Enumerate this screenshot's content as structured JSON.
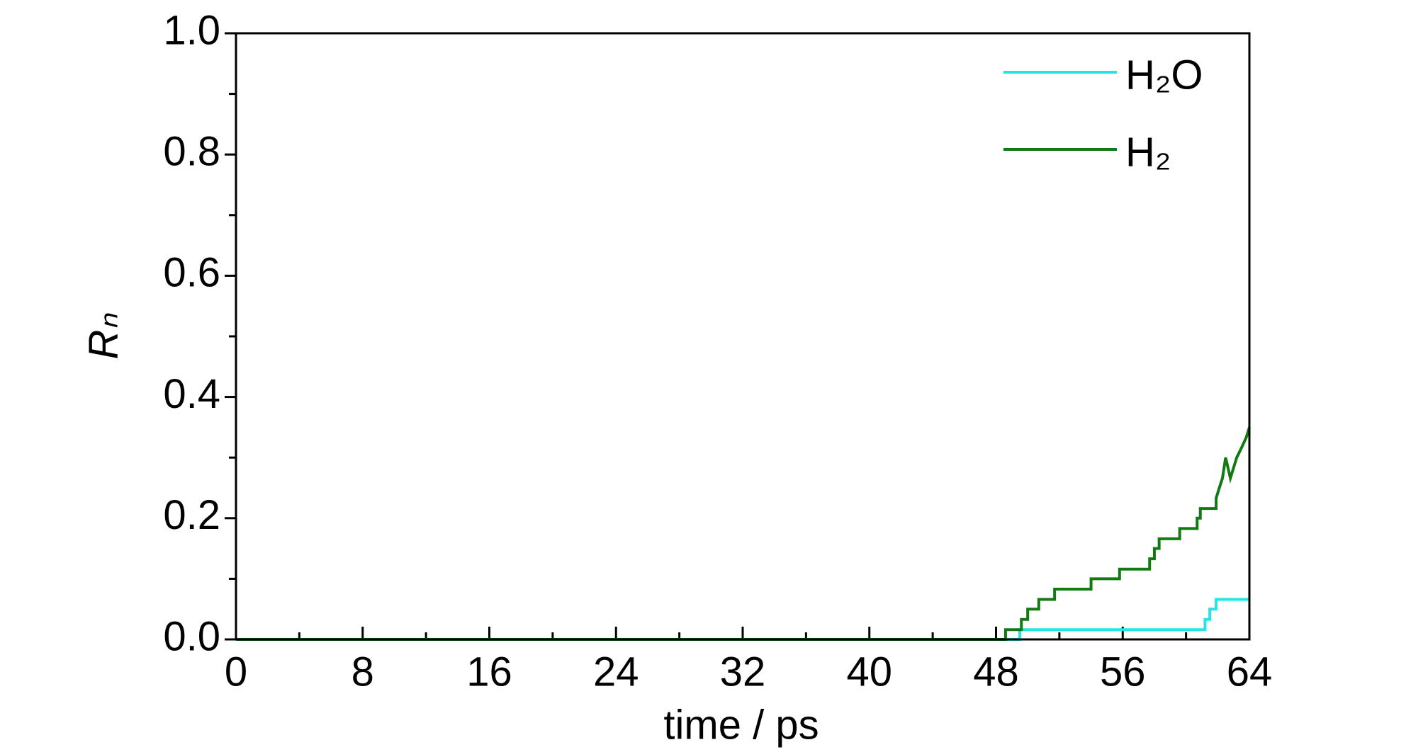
{
  "chart_data": {
    "type": "line",
    "xlabel": "time / ps",
    "ylabel": "Rₙ",
    "xlim": [
      0,
      64
    ],
    "xticks": [
      0,
      8,
      16,
      24,
      32,
      40,
      48,
      56,
      64
    ],
    "xticks_minor": [
      4,
      12,
      20,
      28,
      36,
      44,
      52,
      60
    ],
    "ylim": [
      0,
      1
    ],
    "yticks": [
      {
        "value": 0,
        "label": "0.0"
      },
      {
        "value": 0.2,
        "label": "0.2"
      },
      {
        "value": 0.4,
        "label": "0.4"
      },
      {
        "value": 0.6,
        "label": "0.6"
      },
      {
        "value": 0.8,
        "label": "0.8"
      },
      {
        "value": 1,
        "label": "1.0"
      }
    ],
    "yticks_minor": [
      0.1,
      0.3,
      0.5,
      0.7,
      0.9
    ],
    "legend": "upper right",
    "series": [
      {
        "name": "H₂O",
        "color": "#22e5e5",
        "x": [
          0,
          49.5,
          49.5,
          61.2,
          61.2,
          61.5,
          61.5,
          61.9,
          61.9,
          64
        ],
        "values": [
          0,
          0,
          0.016,
          0.016,
          0.033,
          0.033,
          0.05,
          0.05,
          0.066,
          0.066
        ]
      },
      {
        "name": "H₂",
        "color": "#137a13",
        "x": [
          0,
          48.6,
          48.6,
          49.6,
          49.6,
          50.0,
          50.0,
          50.7,
          50.7,
          51.7,
          51.7,
          54.0,
          54.0,
          55.8,
          55.8,
          57.7,
          57.7,
          58.0,
          58.0,
          58.3,
          58.3,
          59.6,
          59.6,
          60.7,
          60.7,
          60.9,
          60.9,
          61.9,
          61.9,
          62.1,
          62.3,
          62.5,
          62.8,
          63.2,
          63.5,
          63.8,
          64
        ],
        "values": [
          0,
          0,
          0.016,
          0.016,
          0.033,
          0.033,
          0.05,
          0.05,
          0.066,
          0.066,
          0.083,
          0.083,
          0.1,
          0.1,
          0.116,
          0.116,
          0.133,
          0.133,
          0.15,
          0.15,
          0.166,
          0.166,
          0.183,
          0.183,
          0.2,
          0.2,
          0.216,
          0.216,
          0.233,
          0.25,
          0.266,
          0.3,
          0.266,
          0.3,
          0.316,
          0.333,
          0.35
        ]
      }
    ]
  }
}
